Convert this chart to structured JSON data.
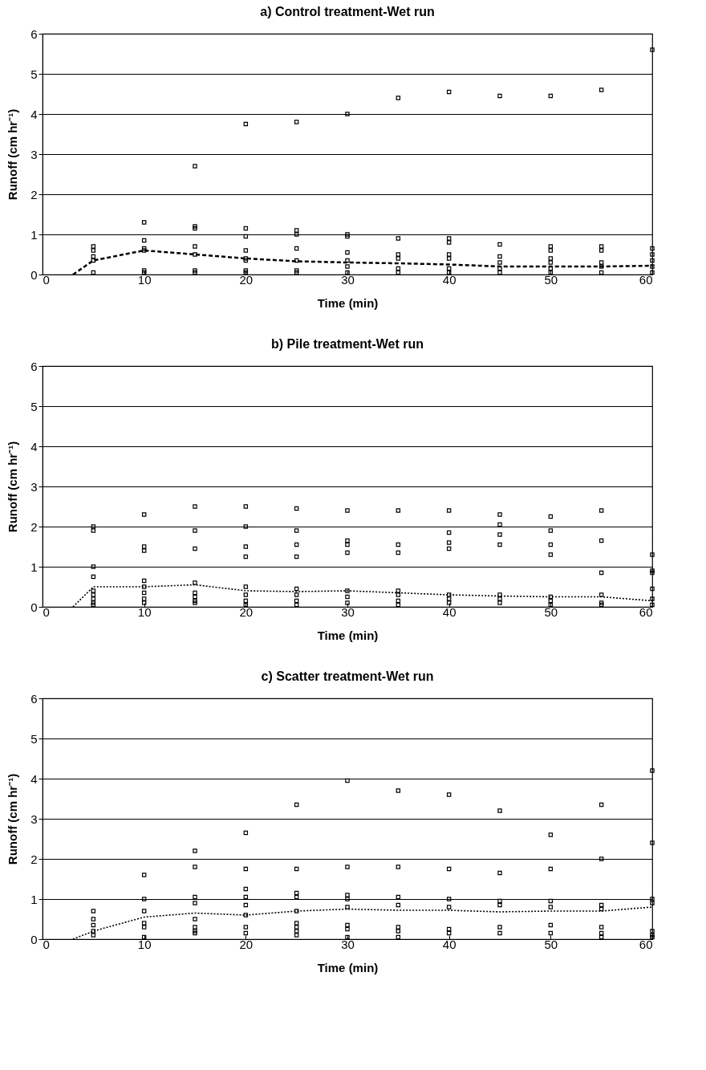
{
  "chart_data": [
    {
      "type": "scatter",
      "title": "a) Control treatment-Wet run",
      "xlabel": "Time (min)",
      "ylabel": "Runoff (cm hr⁻¹)",
      "xlim": [
        0,
        60
      ],
      "ylim": [
        0,
        6
      ],
      "xticks": [
        0,
        10,
        20,
        30,
        40,
        50,
        60
      ],
      "yticks": [
        0,
        1,
        2,
        3,
        4,
        5,
        6
      ],
      "grid": "y",
      "series": [
        {
          "marker": "square",
          "color": "#000000",
          "x": [
            5,
            5,
            5,
            5,
            5,
            10,
            10,
            10,
            10,
            10,
            10,
            15,
            15,
            15,
            15,
            15,
            15,
            15,
            20,
            20,
            20,
            20,
            20,
            20,
            20,
            20,
            25,
            25,
            25,
            25,
            25,
            25,
            25,
            30,
            30,
            30,
            30,
            30,
            30,
            30,
            35,
            35,
            35,
            35,
            35,
            35,
            40,
            40,
            40,
            40,
            40,
            40,
            40,
            45,
            45,
            45,
            45,
            45,
            45,
            50,
            50,
            50,
            50,
            50,
            50,
            50,
            55,
            55,
            55,
            55,
            55,
            55,
            60,
            60,
            60,
            60,
            60,
            60
          ],
          "values": [
            0.7,
            0.6,
            0.45,
            0.35,
            0.05,
            1.3,
            0.85,
            0.65,
            0.6,
            0.1,
            0.05,
            2.7,
            1.2,
            1.15,
            0.7,
            0.5,
            0.1,
            0.05,
            3.75,
            1.15,
            0.95,
            0.6,
            0.4,
            0.35,
            0.1,
            0.05,
            3.8,
            1.1,
            1.0,
            0.65,
            0.35,
            0.1,
            0.05,
            4.0,
            1.0,
            0.95,
            0.55,
            0.35,
            0.2,
            0.05,
            4.4,
            0.9,
            0.5,
            0.4,
            0.15,
            0.05,
            4.55,
            0.9,
            0.8,
            0.5,
            0.4,
            0.15,
            0.05,
            4.45,
            0.75,
            0.45,
            0.3,
            0.15,
            0.05,
            4.45,
            0.7,
            0.6,
            0.4,
            0.3,
            0.15,
            0.05,
            4.6,
            0.7,
            0.6,
            0.3,
            0.2,
            0.05,
            5.6,
            0.65,
            0.5,
            0.35,
            0.2,
            0.05
          ]
        },
        {
          "type": "line",
          "color": "#000000",
          "line_style": "dashed",
          "x": [
            3,
            5,
            10,
            15,
            20,
            25,
            30,
            35,
            40,
            45,
            50,
            55,
            60
          ],
          "values": [
            0,
            0.35,
            0.6,
            0.5,
            0.4,
            0.33,
            0.3,
            0.28,
            0.25,
            0.2,
            0.2,
            0.2,
            0.22
          ]
        }
      ]
    },
    {
      "type": "scatter",
      "title": "b) Pile treatment-Wet run",
      "xlabel": "Time (min)",
      "ylabel": "Runoff (cm hr⁻¹)",
      "xlim": [
        0,
        60
      ],
      "ylim": [
        0,
        6
      ],
      "xticks": [
        0,
        10,
        20,
        30,
        40,
        50,
        60
      ],
      "yticks": [
        0,
        1,
        2,
        3,
        4,
        5,
        6
      ],
      "grid": "y",
      "series": [
        {
          "marker": "square",
          "color": "#000000",
          "x": [
            5,
            5,
            5,
            5,
            5,
            5,
            5,
            5,
            5,
            10,
            10,
            10,
            10,
            10,
            10,
            10,
            10,
            15,
            15,
            15,
            15,
            15,
            15,
            15,
            15,
            20,
            20,
            20,
            20,
            20,
            20,
            20,
            20,
            25,
            25,
            25,
            25,
            25,
            25,
            25,
            25,
            30,
            30,
            30,
            30,
            30,
            30,
            30,
            35,
            35,
            35,
            35,
            35,
            35,
            35,
            40,
            40,
            40,
            40,
            40,
            40,
            40,
            45,
            45,
            45,
            45,
            45,
            45,
            45,
            50,
            50,
            50,
            50,
            50,
            50,
            50,
            55,
            55,
            55,
            55,
            55,
            55,
            60,
            60,
            60,
            60,
            60,
            60
          ],
          "values": [
            2.0,
            1.9,
            1.0,
            0.75,
            0.4,
            0.3,
            0.2,
            0.1,
            0.05,
            2.3,
            1.5,
            1.4,
            0.65,
            0.5,
            0.35,
            0.2,
            0.1,
            2.5,
            1.9,
            1.45,
            0.6,
            0.35,
            0.25,
            0.15,
            0.1,
            2.5,
            2.0,
            1.5,
            1.25,
            0.5,
            0.3,
            0.15,
            0.05,
            2.45,
            1.9,
            1.55,
            1.25,
            0.45,
            0.3,
            0.15,
            0.05,
            2.4,
            1.65,
            1.55,
            1.35,
            0.4,
            0.25,
            0.1,
            2.4,
            1.55,
            1.35,
            0.4,
            0.3,
            0.15,
            0.05,
            2.4,
            1.85,
            1.6,
            1.45,
            0.3,
            0.2,
            0.1,
            2.3,
            2.05,
            1.8,
            1.55,
            0.3,
            0.2,
            0.1,
            2.25,
            1.9,
            1.55,
            1.3,
            0.25,
            0.15,
            0.05,
            2.4,
            1.65,
            0.85,
            0.3,
            0.1,
            0.05,
            1.3,
            0.9,
            0.85,
            0.45,
            0.2,
            0.05
          ]
        },
        {
          "type": "line",
          "color": "#000000",
          "line_style": "dotted",
          "x": [
            3,
            5,
            10,
            15,
            20,
            25,
            30,
            35,
            40,
            45,
            50,
            55,
            60
          ],
          "values": [
            0,
            0.5,
            0.5,
            0.55,
            0.4,
            0.38,
            0.4,
            0.35,
            0.3,
            0.27,
            0.25,
            0.25,
            0.15
          ]
        }
      ]
    },
    {
      "type": "scatter",
      "title": "c) Scatter treatment-Wet run",
      "xlabel": "Time (min)",
      "ylabel": "Runoff (cm hr⁻¹)",
      "xlim": [
        0,
        60
      ],
      "ylim": [
        0,
        6
      ],
      "xticks": [
        0,
        10,
        20,
        30,
        40,
        50,
        60
      ],
      "yticks": [
        0,
        1,
        2,
        3,
        4,
        5,
        6
      ],
      "grid": "y",
      "series": [
        {
          "marker": "square",
          "color": "#000000",
          "x": [
            5,
            5,
            5,
            5,
            5,
            10,
            10,
            10,
            10,
            10,
            10,
            15,
            15,
            15,
            15,
            15,
            15,
            15,
            15,
            20,
            20,
            20,
            20,
            20,
            20,
            20,
            20,
            25,
            25,
            25,
            25,
            25,
            25,
            25,
            25,
            25,
            30,
            30,
            30,
            30,
            30,
            30,
            30,
            30,
            35,
            35,
            35,
            35,
            35,
            35,
            35,
            40,
            40,
            40,
            40,
            40,
            40,
            45,
            45,
            45,
            45,
            45,
            45,
            50,
            50,
            50,
            50,
            50,
            50,
            55,
            55,
            55,
            55,
            55,
            55,
            55,
            60,
            60,
            60,
            60,
            60,
            60,
            60
          ],
          "values": [
            0.7,
            0.5,
            0.35,
            0.2,
            0.1,
            1.6,
            1.0,
            0.7,
            0.4,
            0.3,
            0.05,
            2.2,
            1.8,
            1.05,
            0.9,
            0.5,
            0.3,
            0.2,
            0.15,
            2.65,
            1.75,
            1.25,
            1.05,
            0.85,
            0.6,
            0.3,
            0.15,
            3.35,
            1.75,
            1.15,
            1.05,
            0.7,
            0.4,
            0.3,
            0.2,
            0.1,
            3.95,
            1.8,
            1.1,
            1.0,
            0.8,
            0.35,
            0.25,
            0.05,
            3.7,
            1.8,
            1.05,
            0.85,
            0.3,
            0.2,
            0.05,
            3.6,
            1.75,
            1.0,
            0.8,
            0.25,
            0.15,
            3.2,
            1.65,
            0.95,
            0.85,
            0.3,
            0.15,
            2.6,
            1.75,
            0.95,
            0.8,
            0.35,
            0.15,
            3.35,
            2.0,
            0.85,
            0.75,
            0.3,
            0.15,
            0.05,
            4.2,
            2.4,
            1.0,
            0.9,
            0.2,
            0.1,
            0.05
          ]
        },
        {
          "type": "line",
          "color": "#000000",
          "line_style": "dotted",
          "x": [
            3,
            5,
            10,
            15,
            20,
            25,
            30,
            35,
            40,
            45,
            50,
            55,
            60
          ],
          "values": [
            0,
            0.2,
            0.55,
            0.65,
            0.6,
            0.7,
            0.75,
            0.72,
            0.72,
            0.68,
            0.7,
            0.7,
            0.8
          ]
        }
      ]
    }
  ]
}
